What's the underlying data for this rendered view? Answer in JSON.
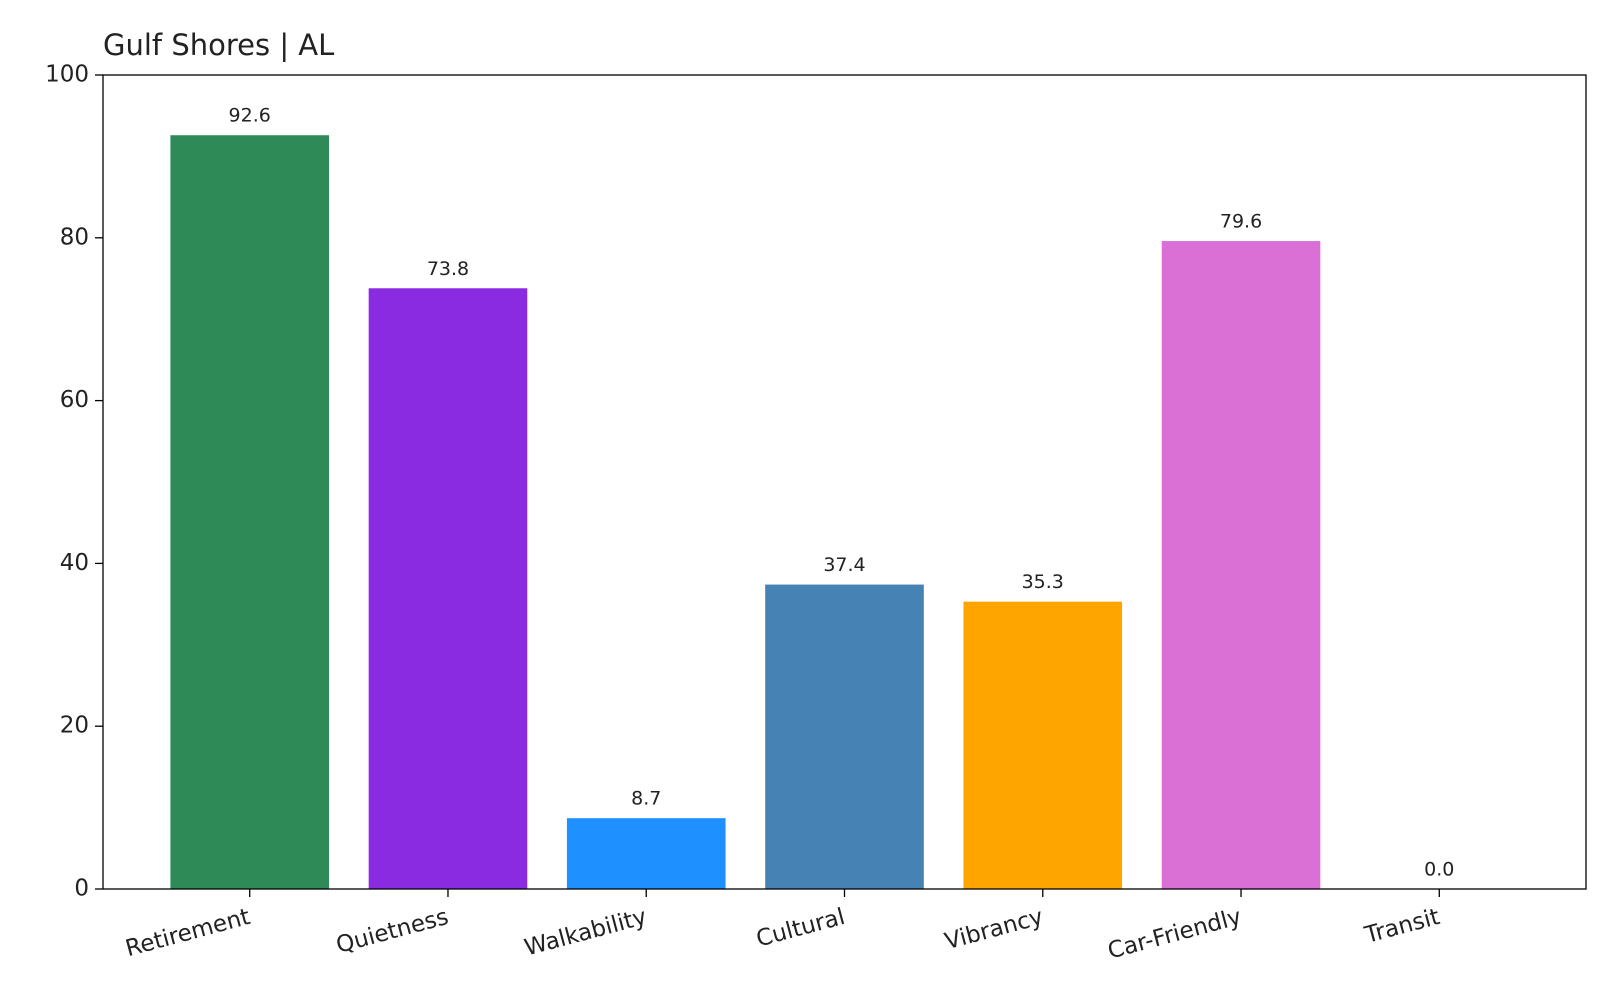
{
  "chart_data": {
    "type": "bar",
    "title": "Gulf Shores | AL",
    "categories": [
      "Retirement",
      "Quietness",
      "Walkability",
      "Cultural",
      "Vibrancy",
      "Car-Friendly",
      "Transit"
    ],
    "values": [
      92.6,
      73.8,
      8.7,
      37.4,
      35.3,
      79.6,
      0
    ],
    "value_labels": [
      "92.6",
      "73.8",
      "8.7",
      "37.4",
      "35.3",
      "79.6",
      "0.0"
    ],
    "colors": [
      "#2e8b57",
      "#8a2be2",
      "#1e90ff",
      "#4682b4",
      "#ffa500",
      "#da70d6",
      "#808080"
    ],
    "ylim": [
      0,
      100
    ],
    "yticks": [
      0,
      20,
      40,
      60,
      80,
      100
    ],
    "grid": false
  }
}
